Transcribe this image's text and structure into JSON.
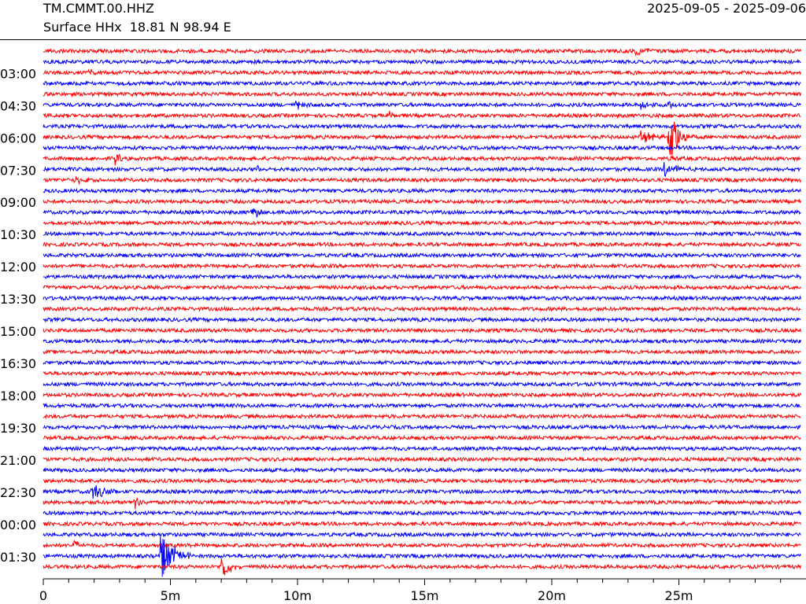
{
  "header": {
    "station": "TM.CMMT.00.HHZ",
    "location": "Surface HHx  18.81 N 98.94 E",
    "date_range": "2025-09-05 - 2025-09-06"
  },
  "chart_data": {
    "type": "line",
    "title": "TM.CMMT.00.HHZ",
    "subtitle": "Surface HHx  18.81 N 98.94 E",
    "xlabel": "",
    "ylabel": "",
    "x_unit": "m",
    "xlim": [
      0,
      30
    ],
    "x_ticks": [
      0,
      5,
      10,
      15,
      20,
      25
    ],
    "x_tick_labels": [
      "0",
      "5m",
      "10m",
      "15m",
      "20m",
      "25m"
    ],
    "y_tick_labels": [
      "03:00",
      "04:30",
      "06:00",
      "07:30",
      "09:00",
      "10:30",
      "12:00",
      "13:30",
      "15:00",
      "16:30",
      "18:00",
      "19:30",
      "21:00",
      "22:30",
      "00:00",
      "01:30"
    ],
    "rows": 49,
    "row_minutes": 30,
    "colors": [
      "#ff0000",
      "#0000ff"
    ],
    "events": [
      {
        "row": 0,
        "minute": 23.3,
        "amp": 5,
        "dur": 1.2
      },
      {
        "row": 2,
        "minute": 1.8,
        "amp": 6,
        "dur": 0.8
      },
      {
        "row": 2,
        "minute": 23.2,
        "amp": 5,
        "dur": 0.4
      },
      {
        "row": 5,
        "minute": 9.9,
        "amp": 7,
        "dur": 0.9
      },
      {
        "row": 5,
        "minute": 23.5,
        "amp": 6,
        "dur": 1.3
      },
      {
        "row": 5,
        "minute": 24.6,
        "amp": 8,
        "dur": 0.4
      },
      {
        "row": 6,
        "minute": 13.6,
        "amp": 9,
        "dur": 0.3
      },
      {
        "row": 8,
        "minute": 23.5,
        "amp": 10,
        "dur": 1.3
      },
      {
        "row": 8,
        "minute": 24.6,
        "amp": 46,
        "dur": 1.0
      },
      {
        "row": 10,
        "minute": 2.8,
        "amp": 9,
        "dur": 0.6
      },
      {
        "row": 10,
        "minute": 24.7,
        "amp": 9,
        "dur": 0.3
      },
      {
        "row": 11,
        "minute": 8.4,
        "amp": 8,
        "dur": 0.3
      },
      {
        "row": 11,
        "minute": 24.4,
        "amp": 11,
        "dur": 1.3
      },
      {
        "row": 12,
        "minute": 1.2,
        "amp": 5,
        "dur": 1.0
      },
      {
        "row": 15,
        "minute": 8.2,
        "amp": 7,
        "dur": 1.2
      },
      {
        "row": 41,
        "minute": 1.9,
        "amp": 12,
        "dur": 1.6
      },
      {
        "row": 42,
        "minute": 3.6,
        "amp": 14,
        "dur": 0.5
      },
      {
        "row": 46,
        "minute": 1.2,
        "amp": 8,
        "dur": 0.5
      },
      {
        "row": 47,
        "minute": 4.6,
        "amp": 34,
        "dur": 1.5
      },
      {
        "row": 48,
        "minute": 7.0,
        "amp": 22,
        "dur": 0.8
      }
    ]
  }
}
